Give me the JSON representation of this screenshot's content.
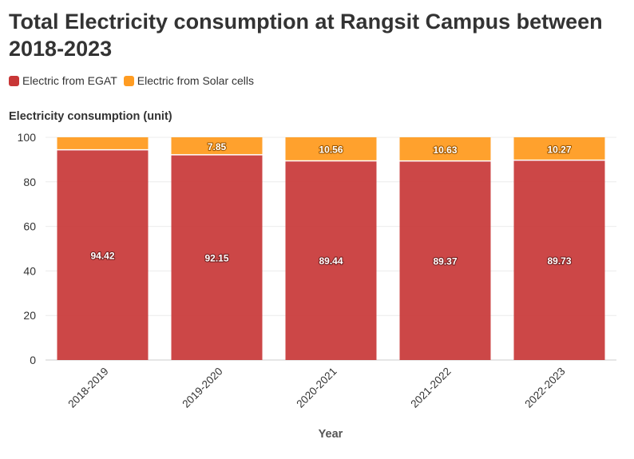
{
  "chart_data": {
    "type": "bar",
    "stacked": true,
    "title": "Total Electricity consumption at Rangsit Campus between 2018-2023",
    "xlabel": "Year",
    "ylabel": "Electricity consumption (unit)",
    "ylim": [
      0,
      100
    ],
    "yticks": [
      0,
      20,
      40,
      60,
      80,
      100
    ],
    "categories": [
      "2018-2019",
      "2019-2020",
      "2020-2021",
      "2021-2022",
      "2022-2023"
    ],
    "series": [
      {
        "name": "Electric from EGAT",
        "color": "#c83737",
        "values": [
          94.42,
          92.15,
          89.44,
          89.37,
          89.73
        ],
        "labels": [
          "94.42",
          "92.15",
          "89.44",
          "89.37",
          "89.73"
        ]
      },
      {
        "name": "Electric from Solar cells",
        "color": "#ff9c22",
        "values": [
          5.58,
          7.85,
          10.56,
          10.63,
          10.27
        ],
        "labels": [
          "",
          "7.85",
          "10.56",
          "10.63",
          "10.27"
        ]
      }
    ],
    "legend_position": "top-left",
    "grid": true
  }
}
